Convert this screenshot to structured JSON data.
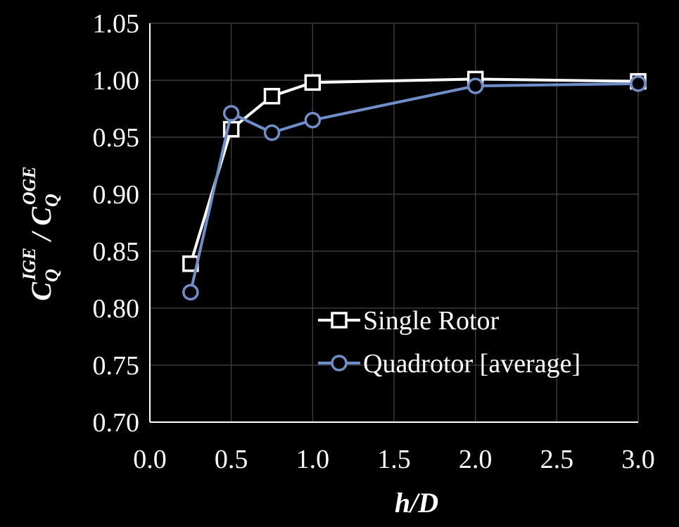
{
  "chart_data": {
    "type": "line",
    "xlabel": "h/D",
    "ylabel": "C_Q^IGE / C_Q^OGE",
    "ylabel_parts": {
      "main1": "C",
      "sub1": "Q",
      "sup1": "IGE",
      "slash": " / ",
      "main2": "C",
      "sub2": "Q",
      "sup2": "OGE"
    },
    "xlim": [
      0.0,
      3.0
    ],
    "ylim": [
      0.7,
      1.05
    ],
    "x_ticks": [
      "0.0",
      "0.5",
      "1.0",
      "1.5",
      "2.0",
      "2.5",
      "3.0"
    ],
    "y_ticks": [
      "0.70",
      "0.75",
      "0.80",
      "0.85",
      "0.90",
      "0.95",
      "1.00",
      "1.05"
    ],
    "grid": true,
    "legend_position": "center-right",
    "series": [
      {
        "name": "Single Rotor",
        "color": "#ffffff",
        "marker": "square",
        "x": [
          0.25,
          0.5,
          0.75,
          1.0,
          2.0,
          3.0
        ],
        "y": [
          0.839,
          0.957,
          0.986,
          0.998,
          1.001,
          0.999
        ]
      },
      {
        "name": "Quadrotor [average]",
        "color": "#6f8fca",
        "marker": "circle",
        "x": [
          0.25,
          0.5,
          0.75,
          1.0,
          2.0,
          3.0
        ],
        "y": [
          0.814,
          0.971,
          0.954,
          0.965,
          0.995,
          0.997
        ]
      }
    ]
  },
  "colors": {
    "background": "#000000",
    "grid": "#3a3a3a",
    "axis": "#ffffff"
  }
}
